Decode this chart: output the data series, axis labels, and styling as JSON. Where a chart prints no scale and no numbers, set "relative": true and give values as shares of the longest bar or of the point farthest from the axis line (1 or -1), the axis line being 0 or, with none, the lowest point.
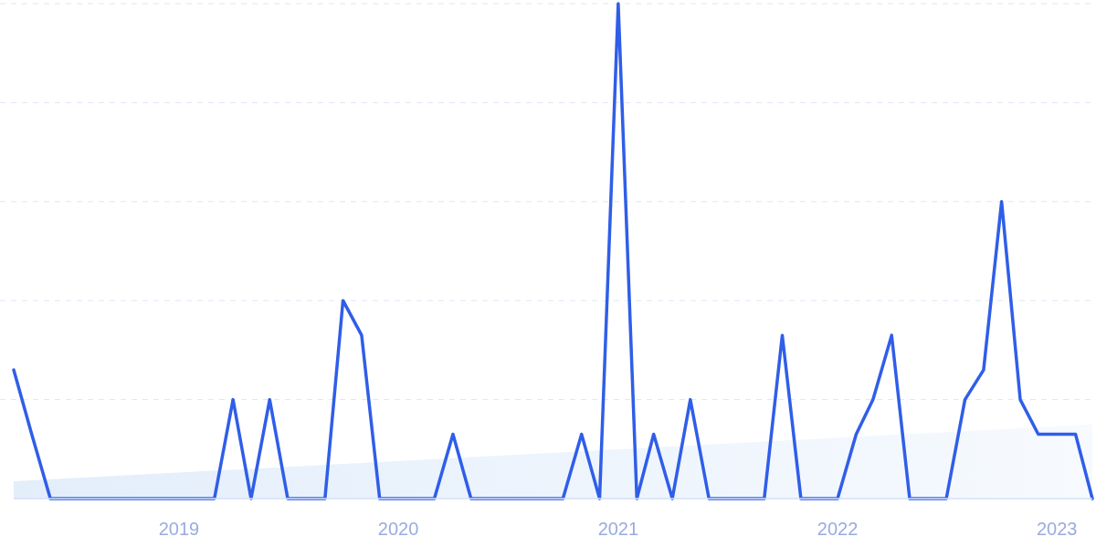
{
  "chart_data": {
    "type": "line",
    "relative": true,
    "grid": "y",
    "x": [
      "2018-04",
      "2018-05",
      "2018-06",
      "2018-07",
      "2018-08",
      "2018-09",
      "2018-10",
      "2018-11",
      "2018-12",
      "2019-01",
      "2019-02",
      "2019-03",
      "2019-04",
      "2019-05",
      "2019-06",
      "2019-07",
      "2019-08",
      "2019-09",
      "2019-10",
      "2019-11",
      "2019-12",
      "2020-01",
      "2020-02",
      "2020-03",
      "2020-04",
      "2020-05",
      "2020-06",
      "2020-07",
      "2020-08",
      "2020-09",
      "2020-10",
      "2020-11",
      "2020-12",
      "2021-01",
      "2021-02",
      "2021-03",
      "2021-04",
      "2021-05",
      "2021-06",
      "2021-07",
      "2021-08",
      "2021-09",
      "2021-10",
      "2021-11",
      "2021-12",
      "2022-01",
      "2022-02",
      "2022-03",
      "2022-04",
      "2022-05",
      "2022-06",
      "2022-07",
      "2022-08",
      "2022-09",
      "2022-10",
      "2022-11",
      "2022-12",
      "2023-01",
      "2023-02",
      "2023-03"
    ],
    "xlim": [
      "2018-04",
      "2023-03"
    ],
    "xticks": [
      "2019",
      "2020",
      "2021",
      "2022",
      "2023"
    ],
    "series": [
      {
        "type": "area",
        "color": "#e3eefb",
        "x": [
          "2018-04",
          "2023-03"
        ],
        "values": [
          0.035,
          0.15
        ]
      },
      {
        "color": "#2f5ee8",
        "values": [
          0.26,
          0.13,
          0,
          0,
          0,
          0,
          0,
          0,
          0,
          0,
          0,
          0,
          0.2,
          0,
          0.2,
          0,
          0,
          0,
          0.4,
          0.33,
          0,
          0,
          0,
          0,
          0.13,
          0,
          0,
          0,
          0,
          0,
          0,
          0.13,
          0,
          1,
          0,
          0.13,
          0,
          0.2,
          0,
          0,
          0,
          0,
          0.33,
          0,
          0,
          0,
          0.13,
          0.2,
          0.33,
          0,
          0,
          0,
          0.2,
          0.26,
          0.6,
          0.2,
          0.13,
          0.13,
          0.13,
          0
        ]
      }
    ]
  }
}
